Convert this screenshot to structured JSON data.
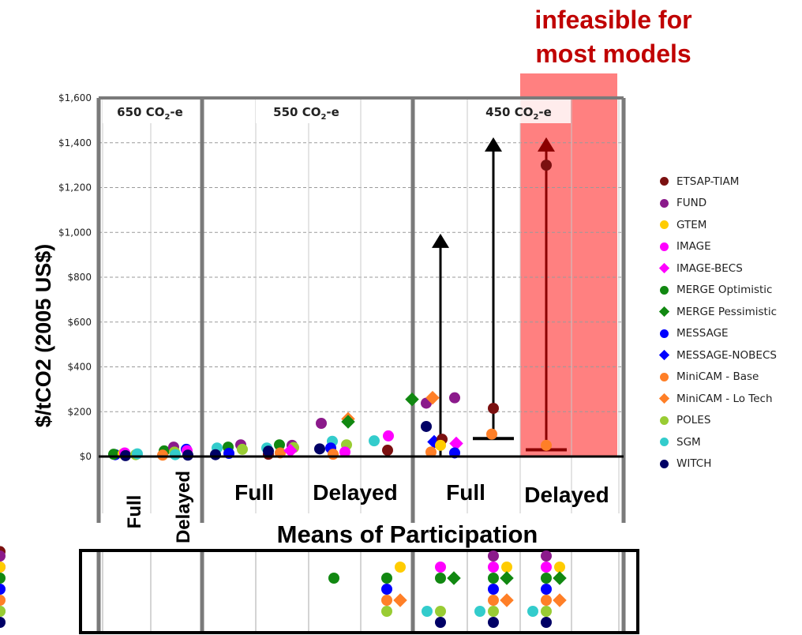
{
  "chart_data": {
    "type": "scatter",
    "ylabel": "$/tCO2 (2005 US$)",
    "xlabel": "Means of Participation",
    "ylim": [
      0,
      1600
    ],
    "yticks": [
      "$0",
      "$200",
      "$400",
      "$600",
      "$800",
      "$1,000",
      "$1,200",
      "$1,400",
      "$1,600"
    ],
    "grid": "dashed horizontal",
    "overlay_text_line1": "infeasible for",
    "overlay_text_line2": "most models",
    "groups": [
      {
        "label": "650 CO",
        "label_sub": "2",
        "label_suffix": "-e"
      },
      {
        "label": "550 CO",
        "label_sub": "2",
        "label_suffix": "-e"
      },
      {
        "label": "450 CO",
        "label_sub": "2",
        "label_suffix": "-e"
      }
    ],
    "participation_labels": [
      "Full",
      "Delayed",
      "Full",
      "Delayed",
      "Full",
      "Delayed"
    ],
    "legend_position": "right",
    "series": [
      {
        "name": "ETSAP-TIAM",
        "color": "#7b1010",
        "marker": "circle"
      },
      {
        "name": "FUND",
        "color": "#8b1a8b",
        "marker": "circle"
      },
      {
        "name": "GTEM",
        "color": "#ffcc00",
        "marker": "circle"
      },
      {
        "name": "IMAGE",
        "color": "#ff00ff",
        "marker": "circle"
      },
      {
        "name": "IMAGE-BECS",
        "color": "#ff00ff",
        "marker": "diamond"
      },
      {
        "name": "MERGE Optimistic",
        "color": "#118811",
        "marker": "circle"
      },
      {
        "name": "MERGE Pessimistic",
        "color": "#118811",
        "marker": "diamond"
      },
      {
        "name": "MESSAGE",
        "color": "#0000ff",
        "marker": "circle"
      },
      {
        "name": "MESSAGE-NOBECS",
        "color": "#0000ff",
        "marker": "diamond"
      },
      {
        "name": "MiniCAM - Base",
        "color": "#ff7f27",
        "marker": "circle"
      },
      {
        "name": "MiniCAM - Lo Tech",
        "color": "#ff7f27",
        "marker": "diamond"
      },
      {
        "name": "POLES",
        "color": "#99cc33",
        "marker": "circle"
      },
      {
        "name": "SGM",
        "color": "#33cccc",
        "marker": "circle"
      },
      {
        "name": "WITCH",
        "color": "#000066",
        "marker": "circle"
      }
    ],
    "points": [
      {
        "col": 0,
        "dx": -14,
        "y": 8,
        "s": "MESSAGE"
      },
      {
        "col": 0,
        "dx": -16,
        "y": 10,
        "s": "MERGE Optimistic"
      },
      {
        "col": 0,
        "dx": -4,
        "y": 12,
        "s": "GTEM"
      },
      {
        "col": 0,
        "dx": -2,
        "y": 16,
        "s": "IMAGE"
      },
      {
        "col": 0,
        "dx": -1,
        "y": 4,
        "s": "WITCH"
      },
      {
        "col": 0,
        "dx": 12,
        "y": 8,
        "s": "POLES"
      },
      {
        "col": 0,
        "dx": 14,
        "y": 12,
        "s": "SGM"
      },
      {
        "col": 1,
        "dx": -14,
        "y": 25,
        "s": "MERGE Optimistic"
      },
      {
        "col": 1,
        "dx": -16,
        "y": 6,
        "s": "MiniCAM - Base"
      },
      {
        "col": 1,
        "dx": -2,
        "y": 42,
        "s": "FUND"
      },
      {
        "col": 1,
        "dx": -1,
        "y": 20,
        "s": "POLES"
      },
      {
        "col": 1,
        "dx": 0,
        "y": 8,
        "s": "SGM"
      },
      {
        "col": 1,
        "dx": 14,
        "y": 32,
        "s": "MESSAGE"
      },
      {
        "col": 1,
        "dx": 15,
        "y": 26,
        "s": "IMAGE"
      },
      {
        "col": 1,
        "dx": 16,
        "y": 6,
        "s": "WITCH"
      },
      {
        "col": 2,
        "dx": -16,
        "y": 38,
        "s": "SGM"
      },
      {
        "col": 2,
        "dx": -18,
        "y": 8,
        "s": "WITCH"
      },
      {
        "col": 2,
        "dx": -2,
        "y": 42,
        "s": "MERGE Optimistic"
      },
      {
        "col": 2,
        "dx": -1,
        "y": 14,
        "s": "MESSAGE"
      },
      {
        "col": 2,
        "dx": 14,
        "y": 52,
        "s": "FUND"
      },
      {
        "col": 2,
        "dx": 16,
        "y": 32,
        "s": "POLES"
      },
      {
        "col": 3,
        "dx": -18,
        "y": 38,
        "s": "SGM"
      },
      {
        "col": 3,
        "dx": -16,
        "y": 10,
        "s": "ETSAP-TIAM"
      },
      {
        "col": 3,
        "dx": -16,
        "y": 24,
        "s": "WITCH"
      },
      {
        "col": 3,
        "dx": -2,
        "y": 52,
        "s": "MERGE Optimistic"
      },
      {
        "col": 3,
        "dx": -1,
        "y": 16,
        "s": "MiniCAM - Base"
      },
      {
        "col": 3,
        "dx": 14,
        "y": 50,
        "s": "FUND"
      },
      {
        "col": 3,
        "dx": 16,
        "y": 40,
        "s": "POLES"
      },
      {
        "col": 3,
        "dx": 12,
        "y": 26,
        "s": "IMAGE-BECS"
      },
      {
        "col": 4,
        "dx": -16,
        "y": 148,
        "s": "FUND"
      },
      {
        "col": 4,
        "dx": -18,
        "y": 34,
        "s": "WITCH"
      },
      {
        "col": 4,
        "dx": -2,
        "y": 68,
        "s": "SGM"
      },
      {
        "col": 4,
        "dx": -4,
        "y": 38,
        "s": "MESSAGE"
      },
      {
        "col": 4,
        "dx": -1,
        "y": 10,
        "s": "MiniCAM - Base"
      },
      {
        "col": 4,
        "dx": 18,
        "y": 168,
        "s": "MiniCAM - Lo Tech"
      },
      {
        "col": 4,
        "dx": 18,
        "y": 155,
        "s": "MERGE Pessimistic"
      },
      {
        "col": 4,
        "dx": 16,
        "y": 52,
        "s": "POLES"
      },
      {
        "col": 4,
        "dx": 14,
        "y": 20,
        "s": "IMAGE"
      },
      {
        "col": 5,
        "dx": -16,
        "y": 70,
        "s": "SGM"
      },
      {
        "col": 5,
        "dx": 1,
        "y": 28,
        "s": "ETSAP-TIAM"
      },
      {
        "col": 5,
        "dx": 2,
        "y": 92,
        "s": "IMAGE"
      },
      {
        "col": 5,
        "dx": 32,
        "y": 255,
        "s": "MERGE Pessimistic"
      },
      {
        "col": 5,
        "dx": 50,
        "y": 238,
        "s": "FUND"
      },
      {
        "col": 5,
        "dx": 50,
        "y": 134,
        "s": "WITCH"
      },
      {
        "col": 6,
        "dx": -10,
        "y": 262,
        "s": "MiniCAM - Lo Tech"
      },
      {
        "col": 6,
        "dx": -8,
        "y": 65,
        "s": "MESSAGE-NOBECS"
      },
      {
        "col": 6,
        "dx": -12,
        "y": 20,
        "s": "MiniCAM - Base"
      },
      {
        "col": 6,
        "dx": 2,
        "y": 77,
        "s": "ETSAP-TIAM"
      },
      {
        "col": 6,
        "dx": 0,
        "y": 50,
        "s": "GTEM"
      },
      {
        "col": 6,
        "dx": 18,
        "y": 262,
        "s": "FUND"
      },
      {
        "col": 6,
        "dx": 20,
        "y": 58,
        "s": "IMAGE-BECS"
      },
      {
        "col": 6,
        "dx": 18,
        "y": 16,
        "s": "MESSAGE"
      },
      {
        "col": 7,
        "dx": 0,
        "y": 215,
        "s": "ETSAP-TIAM"
      },
      {
        "col": 7,
        "dx": -2,
        "y": 100,
        "s": "MiniCAM - Base"
      },
      {
        "col": 8,
        "dx": 0,
        "y": 1300,
        "s": "ETSAP-TIAM"
      },
      {
        "col": 8,
        "dx": 0,
        "y": 50,
        "s": "MiniCAM - Base"
      }
    ],
    "ranges": [
      {
        "col": 6,
        "dx": 0,
        "from": 0,
        "to": 980,
        "color": "#000000",
        "arrow": true,
        "base_bar": false
      },
      {
        "col": 7,
        "dx": 0,
        "from": 80,
        "to": 1410,
        "color": "#000000",
        "arrow": true,
        "base_bar": true
      },
      {
        "col": 8,
        "dx": 0,
        "from": 30,
        "to": 1410,
        "color": "#8b0000",
        "arrow": true,
        "base_bar": true
      }
    ],
    "feasibility_table": {
      "cells": [
        [],
        [],
        [],
        [],
        [
          {
            "s": "MERGE Optimistic",
            "r": 1
          }
        ],
        [
          {
            "s": "GTEM",
            "r": 0,
            "p": 1
          },
          {
            "s": "MERGE Optimistic",
            "r": 1,
            "p": 0
          },
          {
            "s": "MESSAGE",
            "r": 2,
            "p": 0
          },
          {
            "s": "MiniCAM - Base",
            "r": 3,
            "p": 0
          },
          {
            "s": "MiniCAM - Lo Tech",
            "r": 3,
            "p": 1
          },
          {
            "s": "POLES",
            "r": 4,
            "p": 0
          }
        ],
        [
          {
            "s": "IMAGE",
            "r": 0,
            "p": 0
          },
          {
            "s": "MERGE Optimistic",
            "r": 1,
            "p": 0
          },
          {
            "s": "MERGE Pessimistic",
            "r": 1,
            "p": 1
          },
          {
            "s": "SGM",
            "r": 4,
            "p": -1
          },
          {
            "s": "POLES",
            "r": 4,
            "p": 0
          },
          {
            "s": "WITCH",
            "r": 5,
            "p": 0
          }
        ],
        [
          {
            "s": "FUND",
            "r": -1,
            "p": 0
          },
          {
            "s": "IMAGE",
            "r": 0,
            "p": 0
          },
          {
            "s": "GTEM",
            "r": 0,
            "p": 1
          },
          {
            "s": "MERGE Optimistic",
            "r": 1,
            "p": 0
          },
          {
            "s": "MERGE Pessimistic",
            "r": 1,
            "p": 1
          },
          {
            "s": "MESSAGE",
            "r": 2,
            "p": 0
          },
          {
            "s": "MiniCAM - Base",
            "r": 3,
            "p": 0
          },
          {
            "s": "MiniCAM - Lo Tech",
            "r": 3,
            "p": 1
          },
          {
            "s": "SGM",
            "r": 4,
            "p": -1
          },
          {
            "s": "POLES",
            "r": 4,
            "p": 0
          },
          {
            "s": "WITCH",
            "r": 5,
            "p": 0
          }
        ],
        [
          {
            "s": "FUND",
            "r": -1,
            "p": 0
          },
          {
            "s": "IMAGE",
            "r": 0,
            "p": 0
          },
          {
            "s": "GTEM",
            "r": 0,
            "p": 1
          },
          {
            "s": "MERGE Optimistic",
            "r": 1,
            "p": 0
          },
          {
            "s": "MERGE Pessimistic",
            "r": 1,
            "p": 1
          },
          {
            "s": "MESSAGE",
            "r": 2,
            "p": 0
          },
          {
            "s": "MiniCAM - Base",
            "r": 3,
            "p": 0
          },
          {
            "s": "MiniCAM - Lo Tech",
            "r": 3,
            "p": 1
          },
          {
            "s": "SGM",
            "r": 4,
            "p": -1
          },
          {
            "s": "POLES",
            "r": 4,
            "p": 0
          },
          {
            "s": "WITCH",
            "r": 5,
            "p": 0
          }
        ],
        [
          {
            "s": "ETSAP-TIAM",
            "r": -1.4,
            "p": -1
          },
          {
            "s": "FUND",
            "r": -1,
            "p": 0
          },
          {
            "s": "IMAGE",
            "r": 0,
            "p": 0
          },
          {
            "s": "GTEM",
            "r": 0,
            "p": 1
          },
          {
            "s": "MERGE Optimistic",
            "r": 1,
            "p": 0
          },
          {
            "s": "MERGE Pessimistic",
            "r": 1,
            "p": 1
          },
          {
            "s": "MESSAGE",
            "r": 2,
            "p": 0
          },
          {
            "s": "MiniCAM - Base",
            "r": 3,
            "p": 0
          },
          {
            "s": "MiniCAM - Lo Tech",
            "r": 3,
            "p": 1
          },
          {
            "s": "SGM",
            "r": 4,
            "p": -1
          },
          {
            "s": "POLES",
            "r": 4,
            "p": 0
          },
          {
            "s": "WITCH",
            "r": 5,
            "p": 0
          }
        ]
      ]
    }
  }
}
